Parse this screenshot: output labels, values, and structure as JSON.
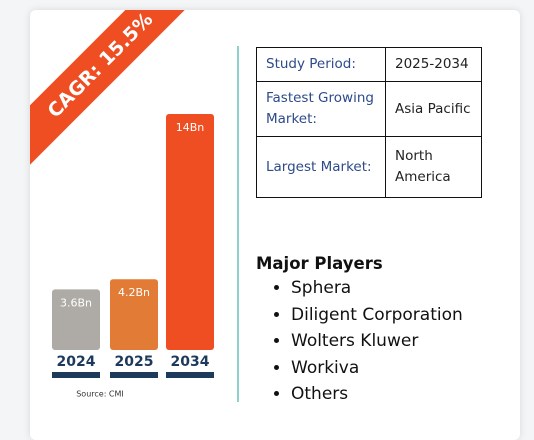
{
  "ribbon": "CAGR: 15.5%",
  "chart_data": {
    "type": "bar",
    "categories": [
      "2024",
      "2025",
      "2034"
    ],
    "values": [
      3.6,
      4.2,
      14
    ],
    "value_labels": [
      "3.6Bn",
      "4.2Bn",
      "14Bn"
    ],
    "colors": [
      "#aeaaa5",
      "#e27b36",
      "#ef4e23"
    ],
    "source": "Source: CMI"
  },
  "table": {
    "rows": [
      [
        "Study Period:",
        "2025-2034"
      ],
      [
        "Fastest Growing Market:",
        "Asia Pacific"
      ],
      [
        "Largest Market:",
        "North America"
      ]
    ]
  },
  "players": {
    "title": "Major Players",
    "items": [
      "Sphera",
      "Diligent Corporation",
      "Wolters Kluwer",
      "Workiva",
      "Others"
    ]
  }
}
